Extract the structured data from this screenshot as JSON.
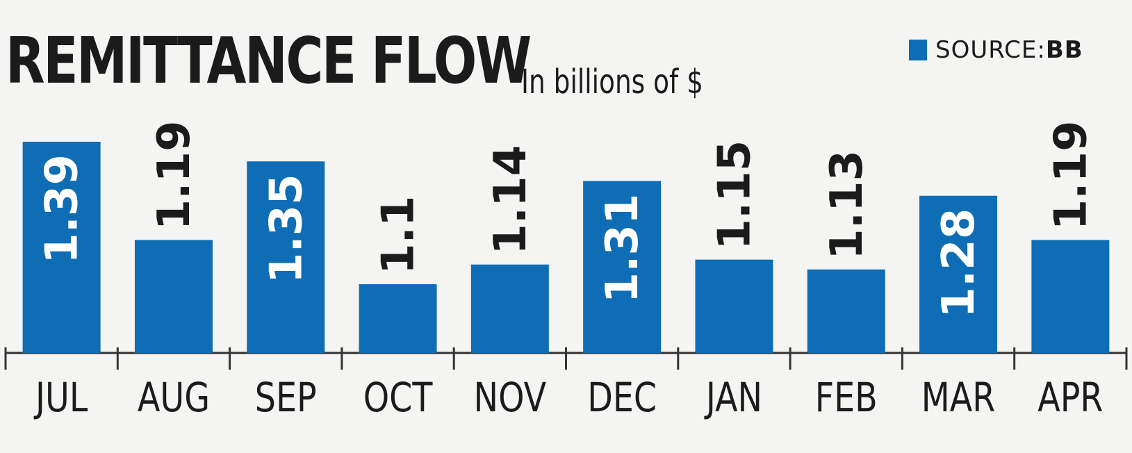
{
  "header": {
    "title": "REMITTANCE FLOW",
    "subtitle": "In billions of $",
    "legend_prefix": "SOURCE:",
    "legend_source": "BB"
  },
  "colors": {
    "bar": "#0e6db4",
    "text": "#1b1b1b",
    "label_inside": "#ffffff",
    "axis": "#333333"
  },
  "chart_data": {
    "type": "bar",
    "title": "REMITTANCE FLOW",
    "subtitle": "In billions of $",
    "categories": [
      "JUL",
      "AUG",
      "SEP",
      "OCT",
      "NOV",
      "DEC",
      "JAN",
      "FEB",
      "MAR",
      "APR"
    ],
    "values": [
      1.39,
      1.19,
      1.35,
      1.1,
      1.14,
      1.31,
      1.15,
      1.13,
      1.28,
      1.19
    ],
    "labels": [
      "1.39",
      "1.19",
      "1.35",
      "1.1",
      "1.14",
      "1.31",
      "1.15",
      "1.13",
      "1.28",
      "1.19"
    ],
    "ylim": [
      0.96,
      1.39
    ],
    "grid": false,
    "legend": "top-right"
  }
}
